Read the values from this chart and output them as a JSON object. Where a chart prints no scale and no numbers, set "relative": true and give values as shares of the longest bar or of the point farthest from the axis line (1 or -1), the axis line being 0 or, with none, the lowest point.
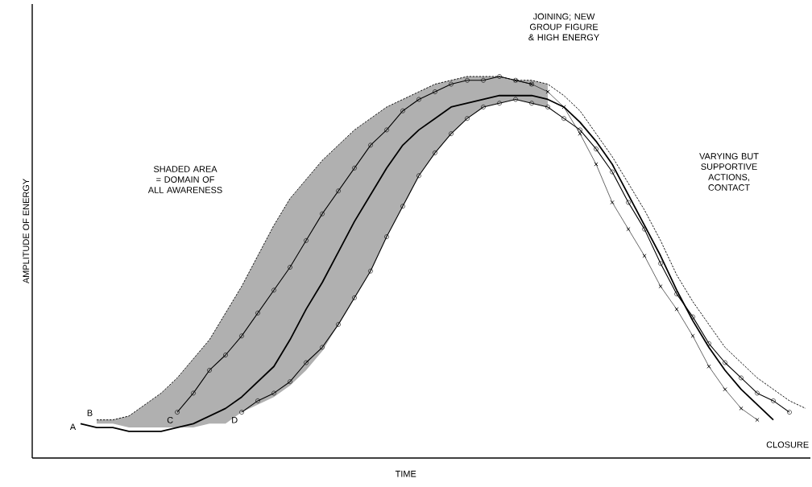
{
  "chart_data": {
    "type": "line",
    "relative": true,
    "xlabel": "TIME",
    "ylabel": "AMPLITUDE OF ENERGY",
    "categories": [
      null,
      null,
      null,
      null,
      null,
      null,
      null,
      null,
      null,
      null,
      null,
      null,
      null,
      null,
      null,
      null,
      null,
      null,
      null,
      null,
      null,
      null,
      null,
      null,
      null,
      null,
      null,
      null,
      null,
      null,
      null,
      null,
      null,
      null,
      null,
      null,
      null,
      null,
      null,
      null,
      null,
      null,
      null,
      null,
      null,
      null
    ],
    "annotations": [
      "SHADED AREA = DOMAIN OF ALL AWARENESS",
      "JOINING; NEW GROUP FIGURE & HIGH ENERGY",
      "VARYING BUT SUPPORTIVE ACTIONS, CONTACT",
      "CLOSURE"
    ],
    "series": [
      {
        "name": "A",
        "color": "#000000",
        "values": [
          0.09,
          0.08,
          0.08,
          0.07,
          0.07,
          0.07,
          0.08,
          0.09,
          0.11,
          0.13,
          0.16,
          0.2,
          0.24,
          0.31,
          0.39,
          0.46,
          0.54,
          0.62,
          0.69,
          0.76,
          0.82,
          0.86,
          0.89,
          0.92,
          0.93,
          0.94,
          0.95,
          0.95,
          0.95,
          0.94,
          0.92,
          0.88,
          0.83,
          0.77,
          0.69,
          0.61,
          0.53,
          0.44,
          0.36,
          0.29,
          0.23,
          0.18,
          0.14,
          0.1,
          null,
          null
        ],
        "upper": [
          null,
          0.1,
          0.1,
          0.11,
          0.14,
          0.17,
          0.21,
          0.26,
          0.31,
          0.38,
          0.45,
          0.53,
          0.61,
          0.68,
          0.73,
          0.78,
          0.82,
          0.86,
          0.89,
          0.92,
          0.94,
          0.96,
          0.98,
          0.99,
          1.0,
          1.0,
          1.0,
          0.99,
          0.99,
          0.98,
          null,
          null,
          null,
          null,
          null,
          null,
          null,
          null,
          null,
          null,
          null,
          null,
          null,
          null,
          null,
          null
        ],
        "lower": [
          null,
          0.09,
          0.09,
          0.08,
          0.08,
          0.08,
          0.08,
          0.08,
          0.09,
          0.09,
          0.12,
          0.14,
          0.16,
          0.19,
          0.23,
          0.28,
          0.35,
          0.42,
          0.49,
          0.58,
          0.66,
          0.74,
          0.8,
          0.85,
          0.89,
          0.92,
          0.93,
          0.94,
          0.93,
          0.92,
          null,
          null,
          null,
          null,
          null,
          null,
          null,
          null,
          null,
          null,
          null,
          null,
          null,
          null,
          null,
          null
        ]
      },
      {
        "name": "B",
        "color": "#000000",
        "line_style": "dashed",
        "values": [
          null,
          0.1,
          0.1,
          0.11,
          0.14,
          0.17,
          0.21,
          0.26,
          0.31,
          0.38,
          0.45,
          0.53,
          0.61,
          0.68,
          0.73,
          0.78,
          0.82,
          0.86,
          0.89,
          0.92,
          0.94,
          0.96,
          0.98,
          0.99,
          1.0,
          1.0,
          1.0,
          0.99,
          0.99,
          0.98,
          0.95,
          0.91,
          0.85,
          0.79,
          0.72,
          0.65,
          0.57,
          0.48,
          0.41,
          0.35,
          0.29,
          0.25,
          0.21,
          0.18,
          0.15,
          0.13
        ]
      },
      {
        "name": "C",
        "color": "#000000",
        "marker": "circle",
        "values": [
          null,
          null,
          null,
          null,
          null,
          null,
          0.12,
          0.17,
          0.23,
          0.27,
          0.32,
          0.38,
          0.44,
          0.5,
          0.57,
          0.64,
          0.7,
          0.76,
          0.82,
          0.86,
          0.91,
          0.94,
          0.96,
          0.98,
          0.99,
          0.99,
          1.0,
          0.99,
          0.98,
          null,
          null,
          null,
          null,
          null,
          null,
          null,
          null,
          null,
          null,
          null,
          null,
          null,
          null,
          null,
          null,
          null
        ]
      },
      {
        "color": "#000000",
        "marker": "cross",
        "values": [
          null,
          null,
          null,
          null,
          null,
          null,
          null,
          null,
          null,
          null,
          null,
          null,
          null,
          null,
          null,
          null,
          null,
          null,
          null,
          null,
          null,
          null,
          null,
          null,
          null,
          null,
          null,
          0.99,
          0.98,
          0.96,
          0.92,
          0.85,
          0.77,
          0.67,
          0.6,
          0.53,
          0.45,
          0.39,
          0.32,
          0.24,
          0.18,
          0.13,
          0.1,
          null,
          null,
          null
        ]
      },
      {
        "name": "D",
        "color": "#000000",
        "marker": "circle",
        "values": [
          null,
          null,
          null,
          null,
          null,
          null,
          null,
          null,
          null,
          null,
          0.12,
          0.15,
          0.17,
          0.2,
          0.25,
          0.29,
          0.35,
          0.42,
          0.49,
          0.58,
          0.66,
          0.74,
          0.8,
          0.85,
          0.89,
          0.92,
          0.93,
          0.94,
          0.93,
          0.92,
          0.89,
          0.86,
          0.81,
          0.75,
          0.67,
          0.6,
          0.51,
          0.43,
          0.37,
          0.3,
          0.25,
          0.21,
          0.17,
          0.15,
          0.12,
          null
        ]
      }
    ]
  }
}
